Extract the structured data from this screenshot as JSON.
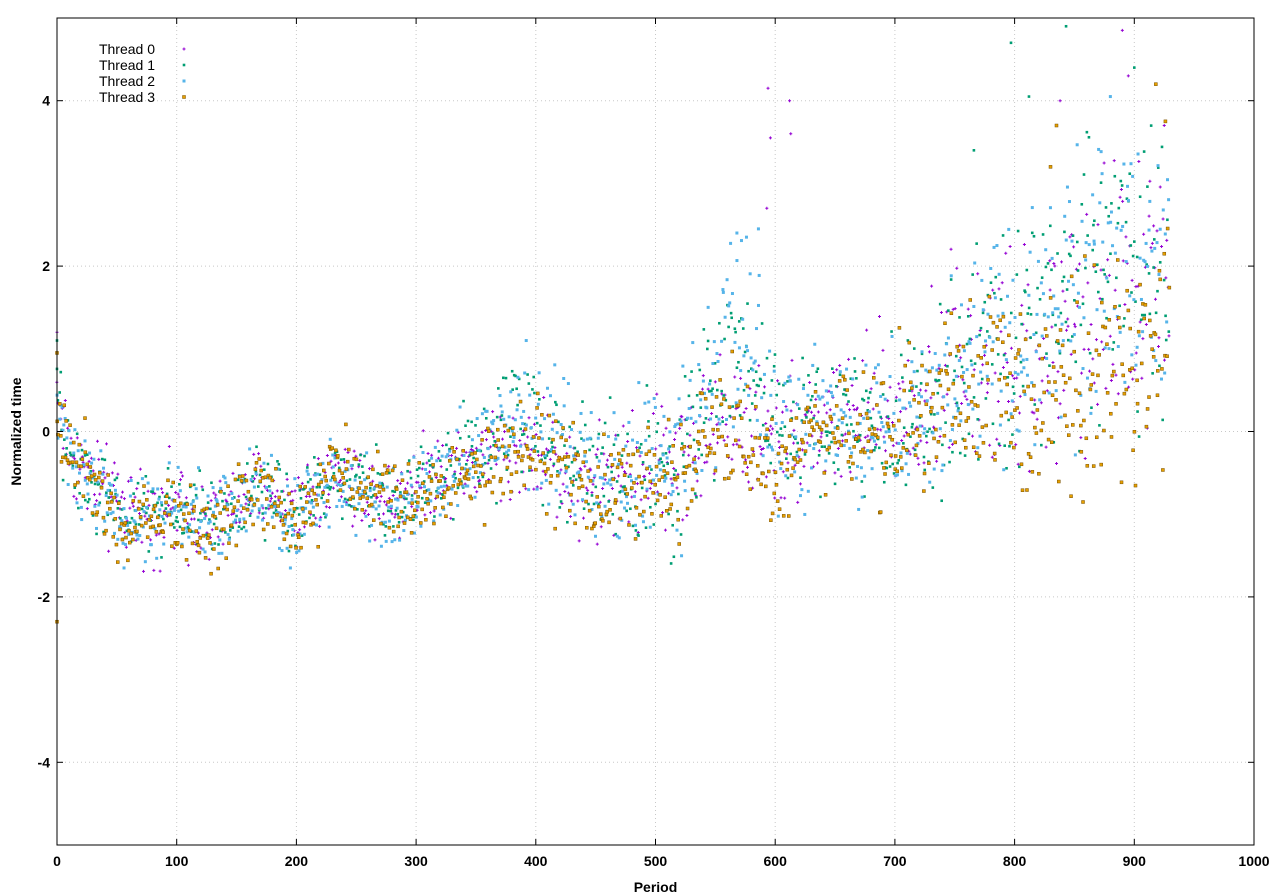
{
  "chart_data": {
    "type": "scatter",
    "title": "",
    "xlabel": "Period",
    "ylabel": "Normalized time",
    "xlim": [
      0,
      1000
    ],
    "ylim": [
      -5,
      5
    ],
    "x_ticks": [
      0,
      100,
      200,
      300,
      400,
      500,
      600,
      700,
      800,
      900,
      1000
    ],
    "y_ticks": [
      -4,
      -2,
      0,
      2,
      4
    ],
    "grid": true,
    "legend_position": "top-left",
    "point_count_per_series": 930,
    "series": [
      {
        "name": "Thread 0",
        "color": "#9400d3",
        "marker": "plus",
        "trend": [
          [
            0,
            0.5
          ],
          [
            10,
            -0.2
          ],
          [
            30,
            -0.6
          ],
          [
            60,
            -1.0
          ],
          [
            100,
            -0.9
          ],
          [
            130,
            -1.1
          ],
          [
            170,
            -0.7
          ],
          [
            200,
            -0.9
          ],
          [
            230,
            -0.5
          ],
          [
            280,
            -0.8
          ],
          [
            320,
            -0.4
          ],
          [
            400,
            -0.2
          ],
          [
            450,
            -0.7
          ],
          [
            520,
            -0.3
          ],
          [
            560,
            0.2
          ],
          [
            600,
            -0.1
          ],
          [
            650,
            0.2
          ],
          [
            700,
            0.1
          ],
          [
            750,
            0.8
          ],
          [
            800,
            0.6
          ],
          [
            850,
            1.2
          ],
          [
            900,
            1.8
          ],
          [
            930,
            1.6
          ]
        ],
        "spread": [
          [
            0,
            0.4
          ],
          [
            300,
            0.35
          ],
          [
            550,
            0.6
          ],
          [
            650,
            0.6
          ],
          [
            800,
            1.0
          ],
          [
            930,
            1.2
          ]
        ],
        "outliers": [
          [
            0,
            1.2
          ],
          [
            594,
            4.15
          ],
          [
            612,
            4.0
          ],
          [
            596,
            3.55
          ],
          [
            613,
            3.6
          ],
          [
            593,
            2.7
          ],
          [
            890,
            4.85
          ],
          [
            895,
            4.3
          ],
          [
            838,
            4.0
          ],
          [
            925,
            3.7
          ]
        ]
      },
      {
        "name": "Thread 1",
        "color": "#009e73",
        "marker": "star",
        "trend": [
          [
            0,
            0.4
          ],
          [
            10,
            -0.3
          ],
          [
            30,
            -0.6
          ],
          [
            60,
            -1.1
          ],
          [
            100,
            -0.9
          ],
          [
            130,
            -1.1
          ],
          [
            170,
            -0.7
          ],
          [
            200,
            -1.0
          ],
          [
            230,
            -0.5
          ],
          [
            280,
            -0.9
          ],
          [
            320,
            -0.5
          ],
          [
            390,
            0.2
          ],
          [
            450,
            -0.6
          ],
          [
            520,
            -0.4
          ],
          [
            570,
            1.2
          ],
          [
            600,
            0.2
          ],
          [
            650,
            0.1
          ],
          [
            700,
            0.0
          ],
          [
            750,
            0.5
          ],
          [
            800,
            1.0
          ],
          [
            850,
            1.8
          ],
          [
            900,
            2.2
          ],
          [
            930,
            1.8
          ]
        ],
        "spread": [
          [
            0,
            0.35
          ],
          [
            300,
            0.35
          ],
          [
            560,
            0.7
          ],
          [
            650,
            0.55
          ],
          [
            800,
            1.0
          ],
          [
            930,
            1.3
          ]
        ],
        "outliers": [
          [
            0,
            1.1
          ],
          [
            797,
            4.7
          ],
          [
            812,
            4.05
          ],
          [
            843,
            4.9
          ],
          [
            900,
            4.4
          ],
          [
            766,
            3.4
          ]
        ]
      },
      {
        "name": "Thread 2",
        "color": "#56b4e9",
        "marker": "box",
        "trend": [
          [
            0,
            0.3
          ],
          [
            10,
            -0.3
          ],
          [
            30,
            -0.6
          ],
          [
            60,
            -1.2
          ],
          [
            100,
            -0.9
          ],
          [
            130,
            -1.1
          ],
          [
            170,
            -0.7
          ],
          [
            200,
            -1.1
          ],
          [
            230,
            -0.6
          ],
          [
            280,
            -0.9
          ],
          [
            320,
            -0.6
          ],
          [
            390,
            0.3
          ],
          [
            450,
            -0.6
          ],
          [
            520,
            -0.4
          ],
          [
            570,
            1.5
          ],
          [
            600,
            0.0
          ],
          [
            650,
            0.1
          ],
          [
            700,
            0.0
          ],
          [
            750,
            0.6
          ],
          [
            800,
            1.1
          ],
          [
            850,
            1.7
          ],
          [
            900,
            2.0
          ],
          [
            930,
            1.7
          ]
        ],
        "spread": [
          [
            0,
            0.35
          ],
          [
            300,
            0.35
          ],
          [
            560,
            0.8
          ],
          [
            650,
            0.55
          ],
          [
            800,
            1.0
          ],
          [
            930,
            1.3
          ]
        ],
        "outliers": [
          [
            56,
            -1.65
          ],
          [
            195,
            -1.65
          ],
          [
            392,
            1.1
          ],
          [
            568,
            2.4
          ],
          [
            576,
            2.35
          ],
          [
            586,
            2.45
          ],
          [
            880,
            4.05
          ]
        ]
      },
      {
        "name": "Thread 3",
        "color": "#e69f00",
        "marker": "box",
        "trend": [
          [
            0,
            0.2
          ],
          [
            10,
            -0.2
          ],
          [
            30,
            -0.5
          ],
          [
            60,
            -1.2
          ],
          [
            100,
            -1.0
          ],
          [
            130,
            -1.2
          ],
          [
            170,
            -0.6
          ],
          [
            200,
            -1.1
          ],
          [
            230,
            -0.4
          ],
          [
            280,
            -0.9
          ],
          [
            320,
            -0.7
          ],
          [
            400,
            -0.1
          ],
          [
            450,
            -0.8
          ],
          [
            520,
            -0.6
          ],
          [
            560,
            0.0
          ],
          [
            600,
            -0.6
          ],
          [
            650,
            0.0
          ],
          [
            700,
            0.1
          ],
          [
            750,
            0.4
          ],
          [
            800,
            0.5
          ],
          [
            850,
            0.4
          ],
          [
            900,
            0.7
          ],
          [
            930,
            1.0
          ]
        ],
        "spread": [
          [
            0,
            0.35
          ],
          [
            300,
            0.35
          ],
          [
            560,
            0.55
          ],
          [
            650,
            0.5
          ],
          [
            800,
            0.8
          ],
          [
            930,
            1.0
          ]
        ],
        "outliers": [
          [
            0,
            -2.3
          ],
          [
            0,
            0.95
          ],
          [
            835,
            3.7
          ],
          [
            918,
            4.2
          ],
          [
            926,
            3.75
          ],
          [
            830,
            3.2
          ]
        ]
      }
    ]
  }
}
